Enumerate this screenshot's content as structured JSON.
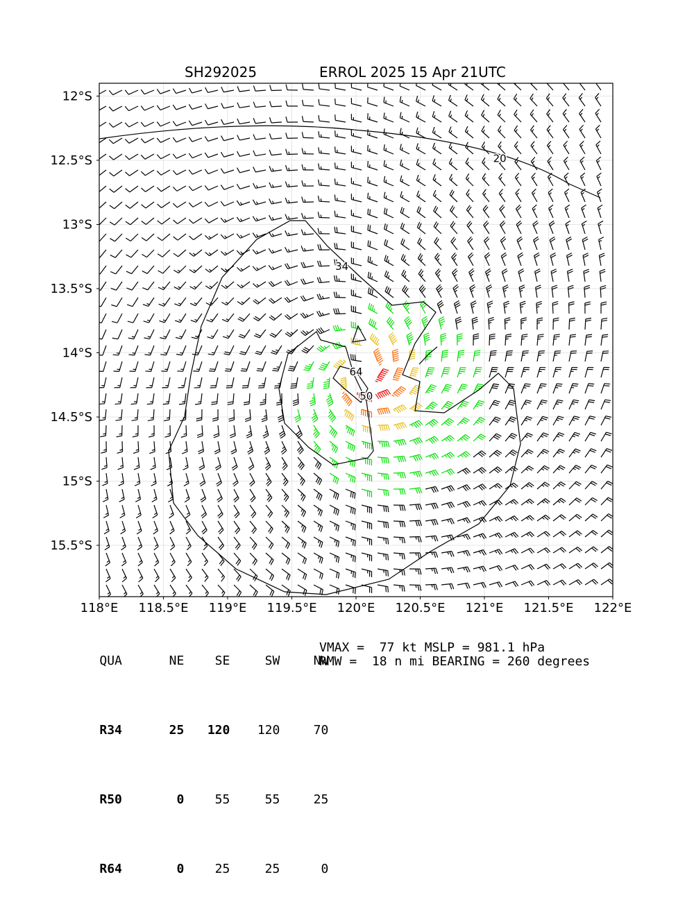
{
  "chart_data": {
    "type": "wind_barb_map",
    "title_left": "SH292025",
    "title_right": "ERROL 2025 15 Apr 21UTC",
    "xlim": [
      118.0,
      122.0
    ],
    "ylim": [
      -15.9,
      -11.9
    ],
    "x_ticks": [
      118.0,
      118.5,
      119.0,
      119.5,
      120.0,
      120.5,
      121.0,
      121.5,
      122.0
    ],
    "x_tick_labels": [
      "118°E",
      "118.5°E",
      "119°E",
      "119.5°E",
      "120°E",
      "120.5°E",
      "121°E",
      "121.5°E",
      "122°E"
    ],
    "y_ticks": [
      -12.0,
      -12.5,
      -13.0,
      -13.5,
      -14.0,
      -14.5,
      -15.0,
      -15.5
    ],
    "y_tick_labels": [
      "12°S",
      "12.5°S",
      "13°S",
      "13.5°S",
      "14°S",
      "14.5°S",
      "15°S",
      "15.5°S"
    ],
    "grid": true,
    "storm_center": {
      "lon": 120.05,
      "lat": -14.15
    },
    "contour_labels": [
      {
        "text": "20",
        "lon": 121.12,
        "lat": -12.49
      },
      {
        "text": "34",
        "lon": 119.89,
        "lat": -13.33
      },
      {
        "text": "64",
        "lon": 120.0,
        "lat": -14.15
      },
      {
        "text": "50",
        "lon": 120.08,
        "lat": -14.34
      }
    ],
    "wind_bands_kt": [
      {
        "range": "<34",
        "color": "#000000"
      },
      {
        "range": "34-50",
        "color": "#00e000"
      },
      {
        "range": "50-64",
        "color": "#e6bf1a"
      },
      {
        "range": "64-77",
        "color": "#ff6600"
      },
      {
        "range": ">=77",
        "color": "#ee0000"
      }
    ]
  },
  "quadrant_table": {
    "header": [
      "QUA",
      "NE",
      "SE",
      "SW",
      "NW"
    ],
    "rows": [
      {
        "label": "R34",
        "values": [
          "25",
          "120",
          "120",
          "70"
        ]
      },
      {
        "label": "R50",
        "values": [
          "0",
          "55",
          "55",
          "25"
        ]
      },
      {
        "label": "R64",
        "values": [
          "0",
          "25",
          "25",
          "0"
        ]
      }
    ]
  },
  "info": {
    "line1": "VMAX =  77 kt MSLP = 981.1 hPa",
    "line2": "RMW =  18 n mi BEARING = 260 degrees"
  }
}
